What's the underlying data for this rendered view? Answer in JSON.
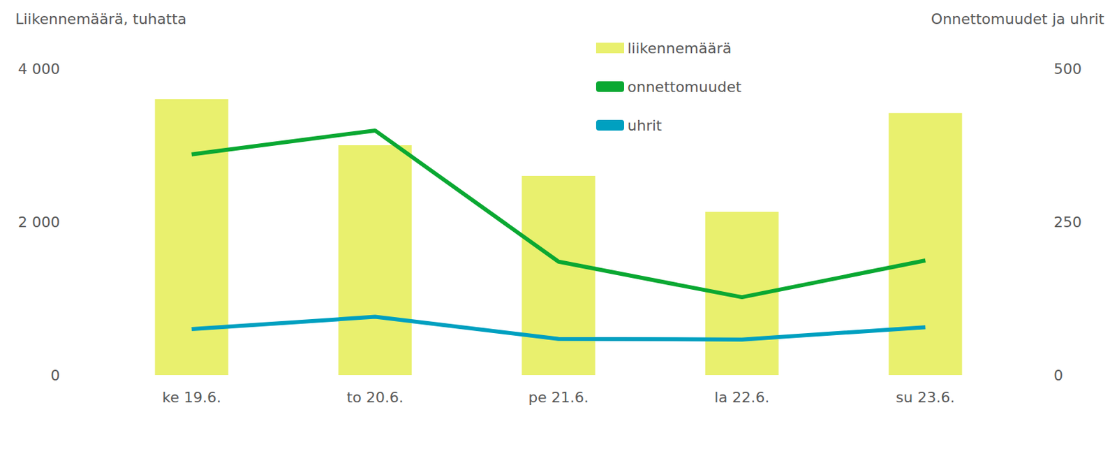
{
  "chart_data": {
    "type": "bar",
    "y_label": "Liikennemäärä, tuhatta",
    "y2_label": "Onnettomuudet ja uhrit",
    "categories": [
      "ke 19.6.",
      "to 20.6.",
      "pe 21.6.",
      "la 22.6.",
      "su 23.6."
    ],
    "series": [
      {
        "name": "liikennemäärä",
        "type": "bar",
        "color": "#e9f06e",
        "values": [
          3600,
          3000,
          2600,
          2130,
          3420
        ]
      },
      {
        "name": "onnettomuudet",
        "type": "line",
        "axis": "y2",
        "color": "#0aa832",
        "marker": "none",
        "values": [
          360,
          399,
          185,
          127,
          187
        ]
      },
      {
        "name": "uhrit",
        "type": "line",
        "axis": "y2",
        "color": "#00a0c0",
        "marker": "none",
        "values": [
          75,
          95,
          59,
          58,
          78
        ]
      }
    ],
    "ylim": [
      0,
      4000
    ],
    "yticks": [
      0,
      {
        "value": 2000,
        "label": "2 000"
      },
      {
        "value": 4000,
        "label": "4 000"
      }
    ],
    "y2lim": [
      0,
      500
    ],
    "y2ticks": [
      0,
      250,
      500
    ],
    "grid": false,
    "legend": "top"
  }
}
